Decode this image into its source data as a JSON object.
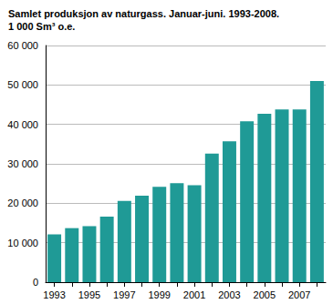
{
  "chart_data": {
    "type": "bar",
    "title": "Samlet produksjon av naturgass. Januar-juni. 1993-2008.",
    "subtitle": "1 000 Sm³ o.e.",
    "categories": [
      "1993",
      null,
      "1995",
      null,
      "1997",
      null,
      "1999",
      null,
      "2001",
      null,
      "2003",
      null,
      "2005",
      null,
      "2007",
      null
    ],
    "values": [
      12100,
      13700,
      14200,
      16600,
      20600,
      21900,
      24200,
      25100,
      24600,
      32600,
      35700,
      40800,
      42700,
      43800,
      43800,
      51000
    ],
    "color": "#1f9a96",
    "ylim": [
      0,
      60000
    ],
    "yticks": [
      {
        "value": 0,
        "label": "0"
      },
      {
        "value": 10000,
        "label": "10 000"
      },
      {
        "value": 20000,
        "label": "20 000"
      },
      {
        "value": 30000,
        "label": "30 000"
      },
      {
        "value": 40000,
        "label": "40 000"
      },
      {
        "value": 50000,
        "label": "50 000"
      },
      {
        "value": 60000,
        "label": "60 000"
      }
    ],
    "grid": true
  }
}
